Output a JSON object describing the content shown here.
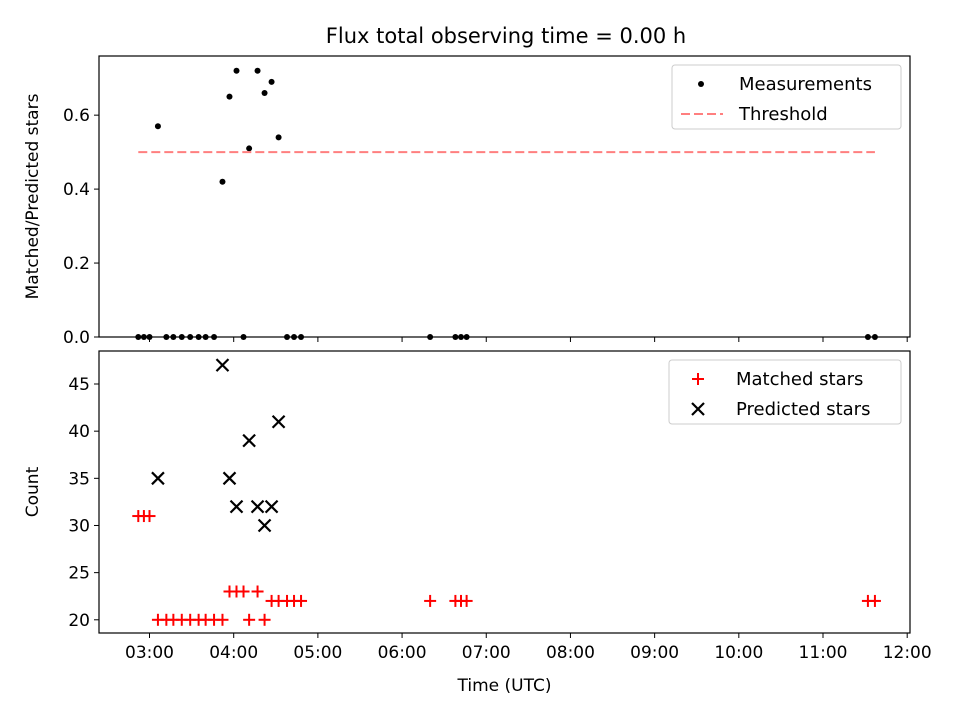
{
  "chart_data": [
    {
      "type": "scatter",
      "title": "Flux total observing time = 0.00 h",
      "ylabel": "Matched/Predicted stars",
      "xlabel": "",
      "xlim": [
        "02:24",
        "12:02"
      ],
      "ylim": [
        0,
        0.76
      ],
      "yticks": [
        0.0,
        0.2,
        0.4,
        0.6
      ],
      "ytick_labels": [
        "0.0",
        "0.2",
        "0.4",
        "0.6"
      ],
      "legend": "top-right",
      "series": [
        {
          "name": "Measurements",
          "marker": "dot",
          "color": "#000000",
          "points": [
            {
              "x": "02:52",
              "y": 0.0
            },
            {
              "x": "02:56",
              "y": 0.0
            },
            {
              "x": "03:00",
              "y": 0.0
            },
            {
              "x": "03:06",
              "y": 0.57
            },
            {
              "x": "03:12",
              "y": 0.0
            },
            {
              "x": "03:17",
              "y": 0.0
            },
            {
              "x": "03:23",
              "y": 0.0
            },
            {
              "x": "03:29",
              "y": 0.0
            },
            {
              "x": "03:35",
              "y": 0.0
            },
            {
              "x": "03:40",
              "y": 0.0
            },
            {
              "x": "03:46",
              "y": 0.0
            },
            {
              "x": "03:52",
              "y": 0.42
            },
            {
              "x": "03:57",
              "y": 0.65
            },
            {
              "x": "04:02",
              "y": 0.72
            },
            {
              "x": "04:07",
              "y": 0.0
            },
            {
              "x": "04:11",
              "y": 0.51
            },
            {
              "x": "04:17",
              "y": 0.72
            },
            {
              "x": "04:22",
              "y": 0.66
            },
            {
              "x": "04:27",
              "y": 0.69
            },
            {
              "x": "04:32",
              "y": 0.54
            },
            {
              "x": "04:38",
              "y": 0.0
            },
            {
              "x": "04:43",
              "y": 0.0
            },
            {
              "x": "04:48",
              "y": 0.0
            },
            {
              "x": "06:20",
              "y": 0.0
            },
            {
              "x": "06:38",
              "y": 0.0
            },
            {
              "x": "06:42",
              "y": 0.0
            },
            {
              "x": "06:46",
              "y": 0.0
            },
            {
              "x": "11:32",
              "y": 0.0
            },
            {
              "x": "11:37",
              "y": 0.0
            }
          ]
        },
        {
          "name": "Threshold",
          "style": "dashed-line",
          "color": "#ff7f7f",
          "x": [
            "02:52",
            "11:37"
          ],
          "y": [
            0.5,
            0.5
          ]
        }
      ]
    },
    {
      "type": "scatter",
      "title": "",
      "ylabel": "Count",
      "xlabel": "Time (UTC)",
      "xlim": [
        "02:24",
        "12:02"
      ],
      "ylim": [
        18.6,
        48.5
      ],
      "yticks": [
        20,
        25,
        30,
        35,
        40,
        45
      ],
      "xticks": [
        "03:00",
        "04:00",
        "05:00",
        "06:00",
        "07:00",
        "08:00",
        "09:00",
        "10:00",
        "11:00",
        "12:00"
      ],
      "legend": "top-right",
      "series": [
        {
          "name": "Matched stars",
          "marker": "plus",
          "color": "#ff0000",
          "points": [
            {
              "x": "02:52",
              "y": 31
            },
            {
              "x": "02:56",
              "y": 31
            },
            {
              "x": "03:00",
              "y": 31
            },
            {
              "x": "03:06",
              "y": 20
            },
            {
              "x": "03:12",
              "y": 20
            },
            {
              "x": "03:17",
              "y": 20
            },
            {
              "x": "03:23",
              "y": 20
            },
            {
              "x": "03:29",
              "y": 20
            },
            {
              "x": "03:35",
              "y": 20
            },
            {
              "x": "03:40",
              "y": 20
            },
            {
              "x": "03:46",
              "y": 20
            },
            {
              "x": "03:52",
              "y": 20
            },
            {
              "x": "03:57",
              "y": 23
            },
            {
              "x": "04:02",
              "y": 23
            },
            {
              "x": "04:07",
              "y": 23
            },
            {
              "x": "04:11",
              "y": 20
            },
            {
              "x": "04:17",
              "y": 23
            },
            {
              "x": "04:22",
              "y": 20
            },
            {
              "x": "04:27",
              "y": 22
            },
            {
              "x": "04:32",
              "y": 22
            },
            {
              "x": "04:38",
              "y": 22
            },
            {
              "x": "04:43",
              "y": 22
            },
            {
              "x": "04:48",
              "y": 22
            },
            {
              "x": "06:20",
              "y": 22
            },
            {
              "x": "06:38",
              "y": 22
            },
            {
              "x": "06:42",
              "y": 22
            },
            {
              "x": "06:46",
              "y": 22
            },
            {
              "x": "11:32",
              "y": 22
            },
            {
              "x": "11:37",
              "y": 22
            }
          ]
        },
        {
          "name": "Predicted stars",
          "marker": "x",
          "color": "#000000",
          "points": [
            {
              "x": "03:06",
              "y": 35
            },
            {
              "x": "03:52",
              "y": 47
            },
            {
              "x": "03:57",
              "y": 35
            },
            {
              "x": "04:02",
              "y": 32
            },
            {
              "x": "04:11",
              "y": 39
            },
            {
              "x": "04:17",
              "y": 32
            },
            {
              "x": "04:22",
              "y": 30
            },
            {
              "x": "04:27",
              "y": 32
            },
            {
              "x": "04:32",
              "y": 41
            }
          ]
        }
      ]
    }
  ]
}
